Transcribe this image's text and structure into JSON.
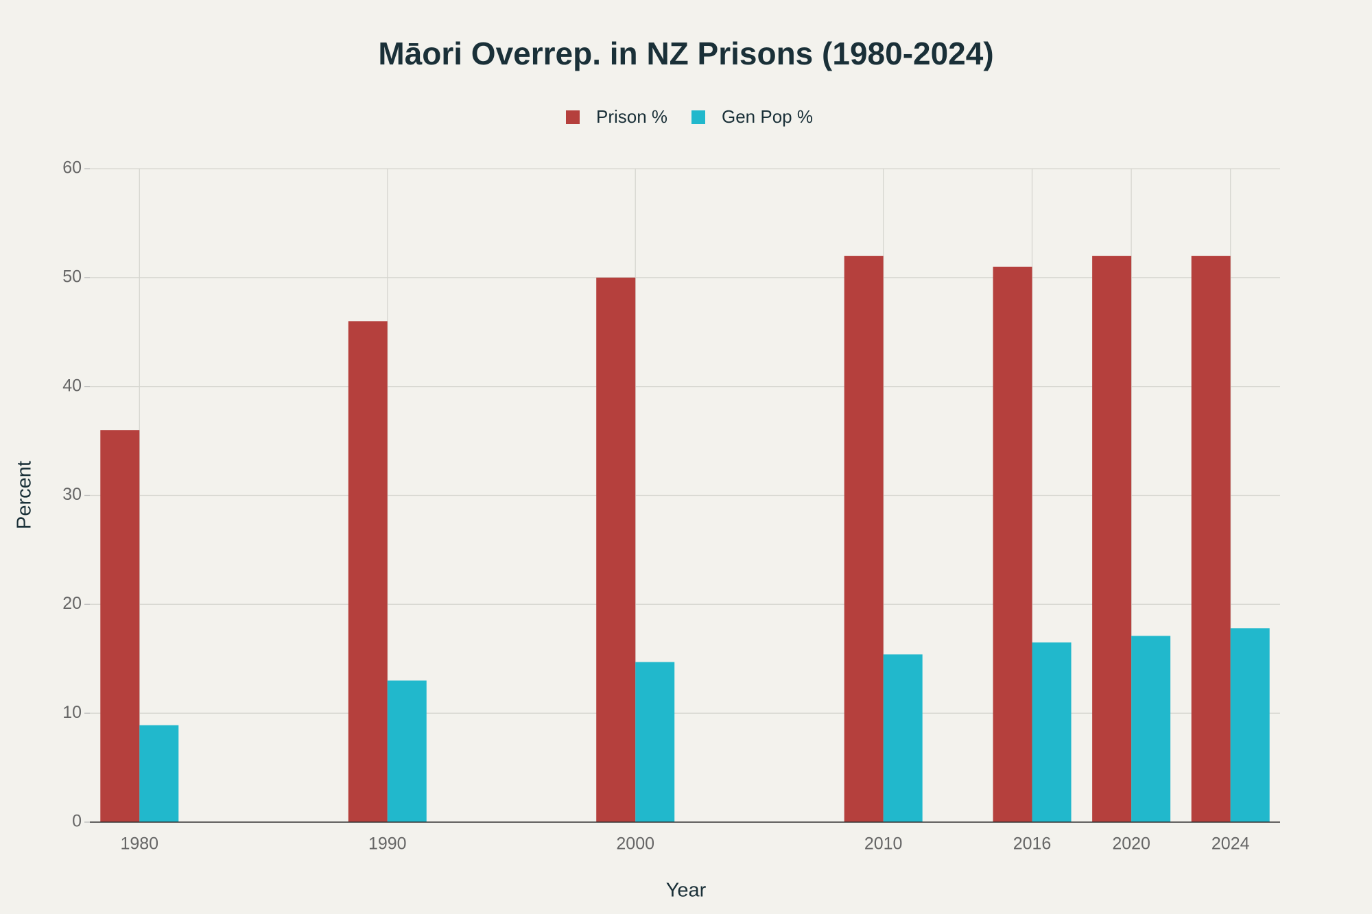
{
  "chart_data": {
    "type": "bar",
    "title": "Māori Overrep. in NZ Prisons (1980-2024)",
    "x_label": "Year",
    "y_label": "Percent",
    "x": [
      1980,
      1990,
      2000,
      2010,
      2016,
      2020,
      2024
    ],
    "series": [
      {
        "name": "Prison %",
        "color": "#b5403d",
        "values": [
          36,
          46,
          50,
          52,
          51,
          52,
          52
        ]
      },
      {
        "name": "Gen Pop %",
        "color": "#21b8cc",
        "values": [
          8.9,
          13,
          14.7,
          15.4,
          16.5,
          17.1,
          17.8
        ]
      }
    ],
    "xlim": [
      1978,
      2026
    ],
    "xticks": [
      1980,
      1990,
      2000,
      2010,
      2016,
      2020,
      2024
    ],
    "ylim": [
      0,
      60
    ],
    "yticks": [
      0,
      10,
      20,
      30,
      40,
      50,
      60
    ],
    "grid": true,
    "legend": "top"
  }
}
